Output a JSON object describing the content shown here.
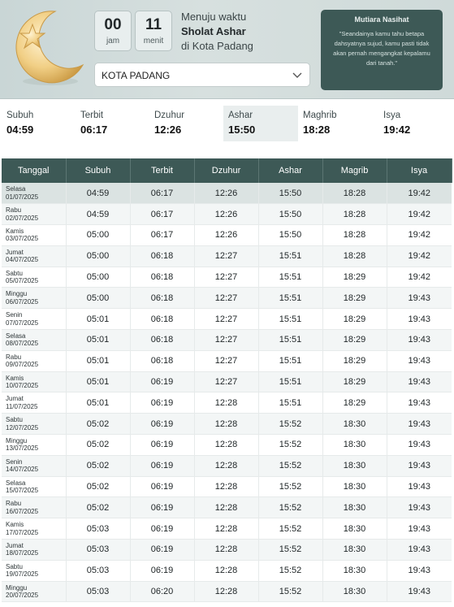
{
  "countdown": {
    "hours": "00",
    "hours_unit": "jam",
    "minutes": "11",
    "minutes_unit": "menit",
    "line1": "Menuju waktu",
    "line2": "Sholat Ashar",
    "line3": "di Kota Padang"
  },
  "city_select": {
    "value": "KOTA PADANG",
    "icon": "chevron-down-icon"
  },
  "quote": {
    "title": "Mutiara Nasihat",
    "text": "\"Seandainya kamu tahu betapa dahsyatnya sujud, kamu pasti tidak akan pernah mengangkat kepalamu dari tanah.\""
  },
  "today_times": [
    {
      "label": "Subuh",
      "value": "04:59"
    },
    {
      "label": "Terbit",
      "value": "06:17"
    },
    {
      "label": "Dzuhur",
      "value": "12:26"
    },
    {
      "label": "Ashar",
      "value": "15:50"
    },
    {
      "label": "Maghrib",
      "value": "18:28"
    },
    {
      "label": "Isya",
      "value": "19:42"
    }
  ],
  "table": {
    "headers": [
      "Tanggal",
      "Subuh",
      "Terbit",
      "Dzuhur",
      "Ashar",
      "Magrib",
      "Isya"
    ],
    "rows": [
      {
        "day": "Selasa",
        "date": "01/07/2025",
        "times": [
          "04:59",
          "06:17",
          "12:26",
          "15:50",
          "18:28",
          "19:42"
        ]
      },
      {
        "day": "Rabu",
        "date": "02/07/2025",
        "times": [
          "04:59",
          "06:17",
          "12:26",
          "15:50",
          "18:28",
          "19:42"
        ]
      },
      {
        "day": "Kamis",
        "date": "03/07/2025",
        "times": [
          "05:00",
          "06:17",
          "12:26",
          "15:50",
          "18:28",
          "19:42"
        ]
      },
      {
        "day": "Jumat",
        "date": "04/07/2025",
        "times": [
          "05:00",
          "06:18",
          "12:27",
          "15:51",
          "18:28",
          "19:42"
        ]
      },
      {
        "day": "Sabtu",
        "date": "05/07/2025",
        "times": [
          "05:00",
          "06:18",
          "12:27",
          "15:51",
          "18:29",
          "19:42"
        ]
      },
      {
        "day": "Minggu",
        "date": "06/07/2025",
        "times": [
          "05:00",
          "06:18",
          "12:27",
          "15:51",
          "18:29",
          "19:43"
        ]
      },
      {
        "day": "Senin",
        "date": "07/07/2025",
        "times": [
          "05:01",
          "06:18",
          "12:27",
          "15:51",
          "18:29",
          "19:43"
        ]
      },
      {
        "day": "Selasa",
        "date": "08/07/2025",
        "times": [
          "05:01",
          "06:18",
          "12:27",
          "15:51",
          "18:29",
          "19:43"
        ]
      },
      {
        "day": "Rabu",
        "date": "09/07/2025",
        "times": [
          "05:01",
          "06:18",
          "12:27",
          "15:51",
          "18:29",
          "19:43"
        ]
      },
      {
        "day": "Kamis",
        "date": "10/07/2025",
        "times": [
          "05:01",
          "06:19",
          "12:27",
          "15:51",
          "18:29",
          "19:43"
        ]
      },
      {
        "day": "Jumat",
        "date": "11/07/2025",
        "times": [
          "05:01",
          "06:19",
          "12:28",
          "15:51",
          "18:29",
          "19:43"
        ]
      },
      {
        "day": "Sabtu",
        "date": "12/07/2025",
        "times": [
          "05:02",
          "06:19",
          "12:28",
          "15:52",
          "18:30",
          "19:43"
        ]
      },
      {
        "day": "Minggu",
        "date": "13/07/2025",
        "times": [
          "05:02",
          "06:19",
          "12:28",
          "15:52",
          "18:30",
          "19:43"
        ]
      },
      {
        "day": "Senin",
        "date": "14/07/2025",
        "times": [
          "05:02",
          "06:19",
          "12:28",
          "15:52",
          "18:30",
          "19:43"
        ]
      },
      {
        "day": "Selasa",
        "date": "15/07/2025",
        "times": [
          "05:02",
          "06:19",
          "12:28",
          "15:52",
          "18:30",
          "19:43"
        ]
      },
      {
        "day": "Rabu",
        "date": "16/07/2025",
        "times": [
          "05:02",
          "06:19",
          "12:28",
          "15:52",
          "18:30",
          "19:43"
        ]
      },
      {
        "day": "Kamis",
        "date": "17/07/2025",
        "times": [
          "05:03",
          "06:19",
          "12:28",
          "15:52",
          "18:30",
          "19:43"
        ]
      },
      {
        "day": "Jumat",
        "date": "18/07/2025",
        "times": [
          "05:03",
          "06:19",
          "12:28",
          "15:52",
          "18:30",
          "19:43"
        ]
      },
      {
        "day": "Sabtu",
        "date": "19/07/2025",
        "times": [
          "05:03",
          "06:19",
          "12:28",
          "15:52",
          "18:30",
          "19:43"
        ]
      },
      {
        "day": "Minggu",
        "date": "20/07/2025",
        "times": [
          "05:03",
          "06:20",
          "12:28",
          "15:52",
          "18:30",
          "19:43"
        ]
      }
    ]
  },
  "colors": {
    "accent": "#3d5956",
    "today_row": "#dbe3e2",
    "hero_bg": "#d7e0df"
  }
}
